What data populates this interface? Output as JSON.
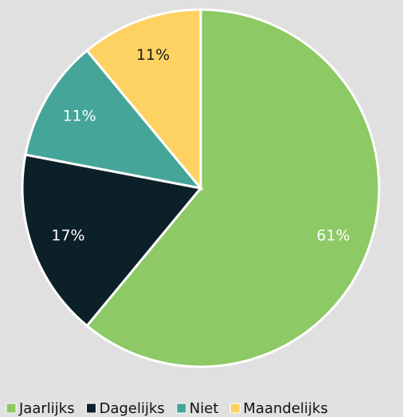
{
  "chart_data": {
    "type": "pie",
    "categories": [
      "Jaarlijks",
      "Dagelijks",
      "Niet",
      "Maandelijks"
    ],
    "values": [
      61,
      17,
      11,
      11
    ],
    "value_labels": [
      "61%",
      "17%",
      "11%",
      "11%"
    ],
    "colors": [
      "#8dc965",
      "#0c2029",
      "#45a598",
      "#fdd262"
    ],
    "label_colors": [
      "#ffffff",
      "#ffffff",
      "#ffffff",
      "#1a1a1a"
    ],
    "legend": "bottom"
  }
}
